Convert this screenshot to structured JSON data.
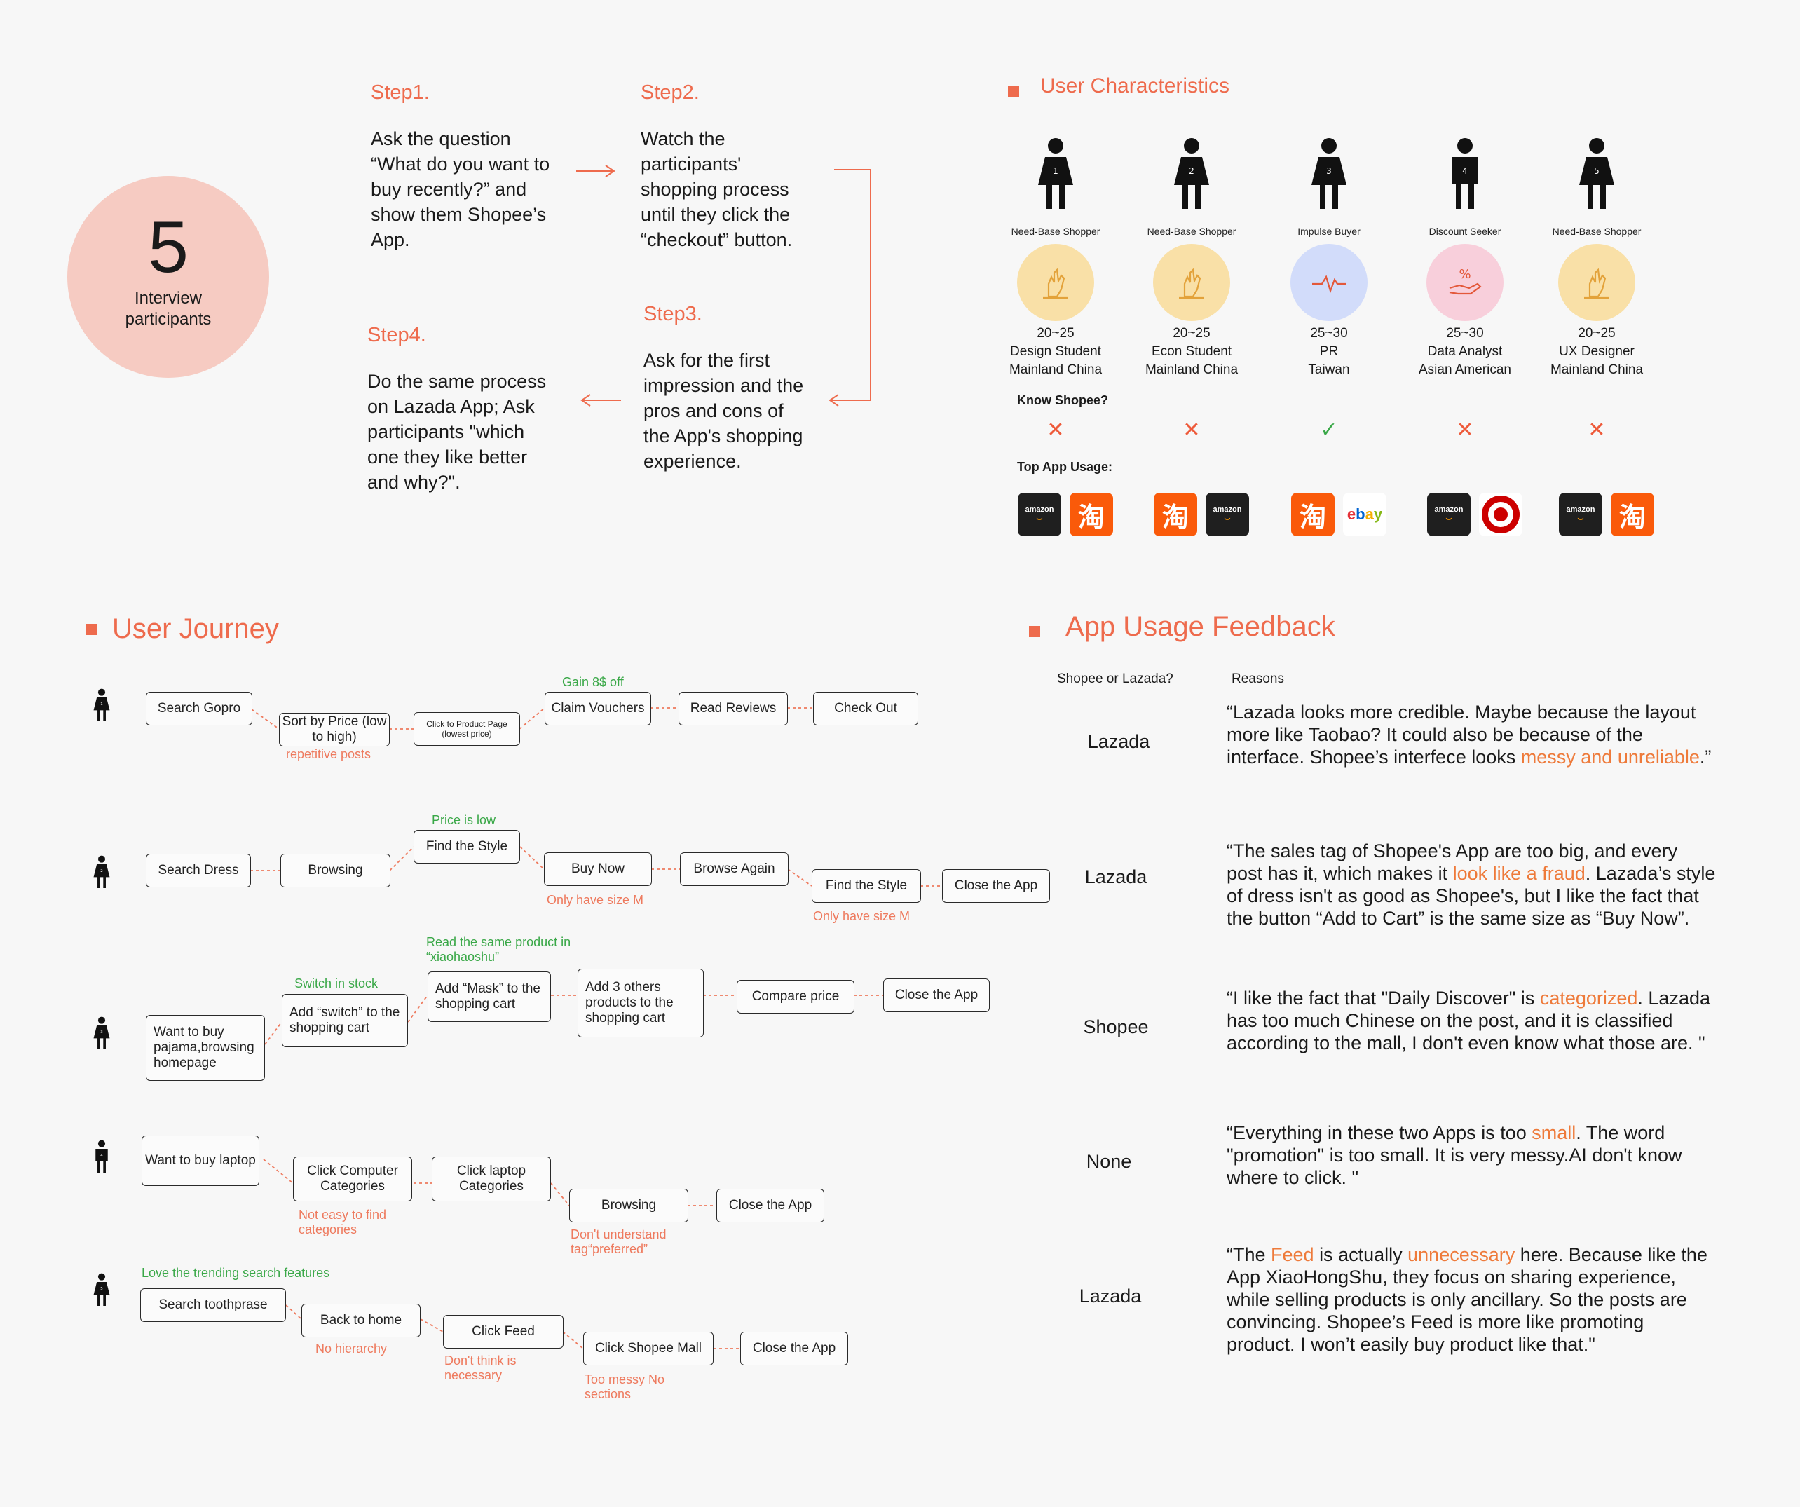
{
  "participants": {
    "count": "5",
    "label_line1": "Interview",
    "label_line2": "participants"
  },
  "steps": [
    {
      "title": "Step1.",
      "lines": [
        "Ask the question",
        "“What do you want to",
        "buy recently?” and",
        "show them Shopee’s",
        "App."
      ]
    },
    {
      "title": "Step2.",
      "lines": [
        "Watch the",
        "participants'",
        "shopping process",
        "until they click the",
        "“checkout” button."
      ]
    },
    {
      "title": "Step3.",
      "lines": [
        "Ask for the first",
        "impression and the",
        "pros and cons of",
        "the App's shopping",
        "experience."
      ]
    },
    {
      "title": "Step4.",
      "lines": [
        "Do the same process",
        "on Lazada App; Ask",
        "participants  \"which",
        "one they like better",
        "and why?\"."
      ]
    }
  ],
  "user_characteristics": {
    "title": "User Characteristics",
    "know_label": "Know Shopee?",
    "top_app_label": "Top App Usage:",
    "users": [
      {
        "num": "1",
        "type": "Need-Base Shopper",
        "age": "20~25",
        "role": "Design Student",
        "region": "Mainland China",
        "knows": "✕",
        "badge_color": "#f9e0a7",
        "icon": "hand-icon",
        "apps": [
          "amazon",
          "淘"
        ]
      },
      {
        "num": "2",
        "type": "Need-Base Shopper",
        "age": "20~25",
        "role": "Econ Student",
        "region": "Mainland China",
        "knows": "✕",
        "badge_color": "#f9e0a7",
        "icon": "hand-icon",
        "apps": [
          "淘",
          "amazon"
        ]
      },
      {
        "num": "3",
        "type": "Impulse Buyer",
        "age": "25~30",
        "role": "PR",
        "region": "Taiwan",
        "knows": "✓",
        "badge_color": "#d2dcfa",
        "icon": "pulse-icon",
        "apps": [
          "淘",
          "ebay"
        ]
      },
      {
        "num": "4",
        "type": "Discount Seeker",
        "age": "25~30",
        "role": "Data Analyst",
        "region": "Asian American",
        "knows": "✕",
        "badge_color": "#f8cfdb",
        "icon": "discount-hand-icon",
        "apps": [
          "amazon",
          "target"
        ]
      },
      {
        "num": "5",
        "type": "Need-Base Shopper",
        "age": "20~25",
        "role": "UX Designer",
        "region": "Mainland China",
        "knows": "✕",
        "badge_color": "#f9e0a7",
        "icon": "hand-icon",
        "apps": [
          "amazon",
          "淘"
        ]
      }
    ]
  },
  "journey": {
    "title": "User Journey",
    "p1": {
      "num": "1",
      "boxes": [
        "Search Gopro",
        "Sort by Price (low to high)",
        "Click to Product Page (lowest price)",
        "Claim Vouchers",
        "Read Reviews",
        "Check Out"
      ],
      "notes": [
        "repetitive posts",
        "Gain 8$ off"
      ]
    },
    "p2": {
      "num": "2",
      "boxes": [
        "Search Dress",
        "Browsing",
        "Find the Style",
        "Buy Now",
        "Browse Again",
        "Find the Style",
        "Close the App"
      ],
      "notes": [
        "Price is low",
        "Only have size M",
        "Only have size M"
      ]
    },
    "p3": {
      "num": "3",
      "boxes": [
        "Want to buy pajama,browsing homepage",
        "Add “switch” to the shopping cart",
        "Add “Mask” to the shopping cart",
        "Add 3 others products to the shopping cart",
        "Compare price",
        "Close the App"
      ],
      "notes": [
        "Switch in stock",
        "Read the same product in “xiaohaoshu”"
      ]
    },
    "p4": {
      "num": "4",
      "boxes": [
        "Want to buy laptop",
        "Click Computer Categories",
        "Click laptop Categories",
        "Browsing",
        "Close the App"
      ],
      "notes": [
        "Not easy to find categories",
        "Don't understand tag“preferred”"
      ]
    },
    "p5": {
      "num": "5",
      "boxes": [
        "Search toothprase",
        "Back to home",
        "Click Feed",
        "Click Shopee Mall",
        "Close the App"
      ],
      "notes": [
        "Love the trending search features",
        "No hierarchy",
        "Don't think is necessary",
        "Too messy No sections"
      ]
    }
  },
  "feedback": {
    "title": "App Usage Feedback",
    "col1": "Shopee or Lazada?",
    "col2": "Reasons",
    "rows": [
      {
        "choice": "Lazada",
        "parts": [
          [
            "“Lazada looks more credible. Maybe because the layout more like Taobao? It could also be because of the interface. Shopee’s interfece looks ",
            false
          ],
          [
            "messy and unreliable",
            true
          ],
          [
            ".”",
            false
          ]
        ]
      },
      {
        "choice": "Lazada",
        "parts": [
          [
            "“The sales tag of Shopee's App are too big, and every post has it, which makes it ",
            false
          ],
          [
            "look like a fraud",
            true
          ],
          [
            ". Lazada’s style of dress isn't as good as Shopee's, but I like the fact that the button “Add to Cart” is the same size as “Buy Now”.",
            false
          ]
        ]
      },
      {
        "choice": "Shopee",
        "parts": [
          [
            "“I like the fact that \"Daily Discover\" is ",
            false
          ],
          [
            "categorized",
            true
          ],
          [
            ". Lazada has too much Chinese on the post, and it is classified according to the mall, I don't even know what those are. \"",
            false
          ]
        ]
      },
      {
        "choice": "None",
        "parts": [
          [
            "“Everything in these two Apps is too ",
            false
          ],
          [
            "small",
            true
          ],
          [
            ". The word \"promotion\" is too small. It is very messy.AI don't know where to click. \"",
            false
          ]
        ]
      },
      {
        "choice": "Lazada",
        "parts": [
          [
            "“The ",
            false
          ],
          [
            "Feed",
            true
          ],
          [
            " is actually ",
            false
          ],
          [
            "unnecessary",
            true
          ],
          [
            " here. Because like the App XiaoHongShu, they focus on sharing experience, while selling products is only ancillary. So the posts are convincing. Shopee’s Feed is more like promoting product. I won’t easily buy product like that.\"",
            false
          ]
        ]
      }
    ]
  },
  "colors": {
    "accent": "#ee6b4d",
    "green": "#3aa848",
    "note_red": "#ee7a5e"
  }
}
